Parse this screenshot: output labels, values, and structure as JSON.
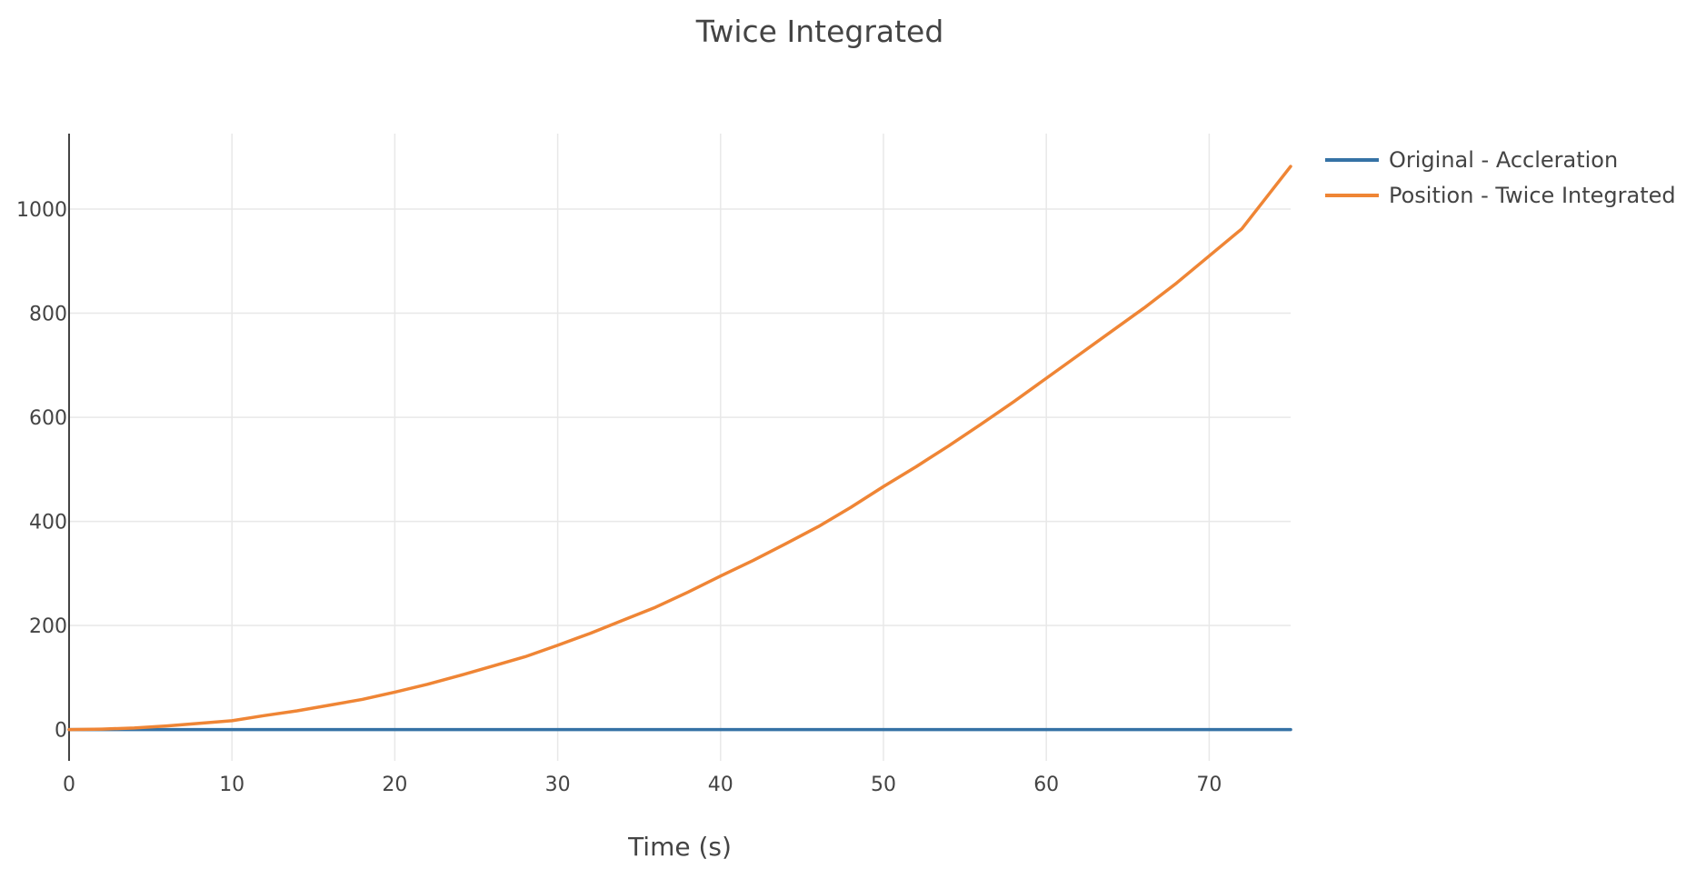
{
  "chart_data": {
    "type": "line",
    "title": "Twice Integrated",
    "xlabel": "Time (s)",
    "ylabel": "",
    "xlim": [
      0,
      75
    ],
    "ylim": [
      -60,
      1145
    ],
    "x_ticks": [
      0,
      10,
      20,
      30,
      40,
      50,
      60,
      70
    ],
    "y_ticks": [
      0,
      200,
      400,
      600,
      800,
      1000
    ],
    "grid": true,
    "legend_position": "top-right",
    "series": [
      {
        "name": "Original - Accleration",
        "color": "#3572a5",
        "x": [
          0,
          75
        ],
        "y": [
          0,
          0
        ]
      },
      {
        "name": "Position - Twice Integrated",
        "color": "#ef8535",
        "x": [
          0,
          2,
          4,
          6,
          8,
          10,
          12,
          14,
          16,
          18,
          20,
          22,
          24,
          26,
          28,
          30,
          32,
          34,
          36,
          38,
          40,
          42,
          44,
          46,
          48,
          50,
          52,
          54,
          56,
          58,
          60,
          62,
          64,
          66,
          68,
          70,
          72,
          75
        ],
        "y": [
          0,
          1,
          3,
          7,
          12,
          17,
          27,
          36,
          47,
          58,
          72,
          87,
          104,
          122,
          140,
          162,
          185,
          210,
          235,
          264,
          295,
          325,
          357,
          390,
          427,
          467,
          505,
          545,
          587,
          630,
          675,
          720,
          765,
          810,
          858,
          910,
          962,
          1082
        ]
      }
    ]
  }
}
